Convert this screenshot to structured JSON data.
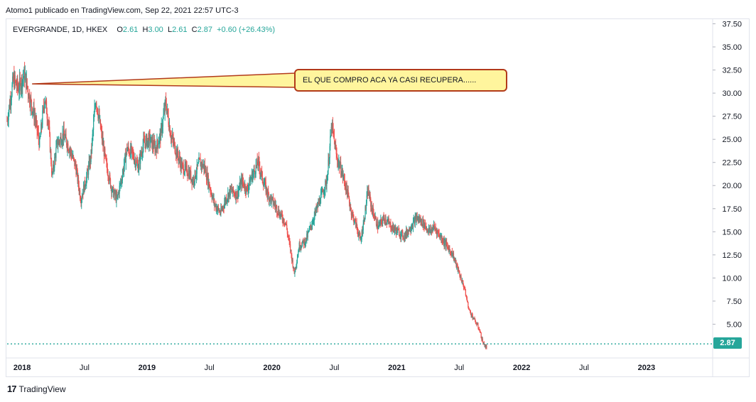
{
  "header": {
    "publisher_line": "Atomo1 publicado en TradingView.com, Sep 22, 2021 22:57 UTC-3"
  },
  "legend": {
    "symbol": "EVERGRANDE, 1D, HKEX",
    "o_label": "O",
    "o_value": "2.61",
    "h_label": "H",
    "h_value": "3.00",
    "l_label": "L",
    "l_value": "2.61",
    "c_label": "C",
    "c_value": "2.87",
    "change": "+0.60 (+26.43%)"
  },
  "annotation": {
    "text": "EL QUE COMPRO ACA YA CASI RECUPERA......"
  },
  "last_price_label": "2.87",
  "footer": {
    "brand": "TradingView",
    "logo_glyph": "17"
  },
  "colors": {
    "up": "#26a69a",
    "down": "#ef5350",
    "grid": "#e0e3eb",
    "callout_fill": "#fff59d",
    "callout_border": "#b23a1a"
  },
  "chart_data": {
    "type": "candlestick",
    "title": "EVERGRANDE, 1D, HKEX",
    "y_axis": {
      "range": [
        1.5,
        38
      ],
      "ticks": [
        "37.50",
        "35.00",
        "32.50",
        "30.00",
        "27.50",
        "25.00",
        "22.50",
        "20.00",
        "17.50",
        "15.00",
        "12.50",
        "10.00",
        "7.50",
        "5.00"
      ],
      "tick_values": [
        37.5,
        35,
        32.5,
        30,
        27.5,
        25,
        22.5,
        20,
        17.5,
        15,
        12.5,
        10,
        7.5,
        5
      ]
    },
    "x_axis": {
      "range": [
        2017.88,
        2023.53
      ],
      "ticks": [
        {
          "label": "2018",
          "value": 2018.0,
          "bold": true
        },
        {
          "label": "Jul",
          "value": 2018.5,
          "bold": false
        },
        {
          "label": "2019",
          "value": 2019.0,
          "bold": true
        },
        {
          "label": "Jul",
          "value": 2019.5,
          "bold": false
        },
        {
          "label": "2020",
          "value": 2020.0,
          "bold": true
        },
        {
          "label": "Jul",
          "value": 2020.5,
          "bold": false
        },
        {
          "label": "2021",
          "value": 2021.0,
          "bold": true
        },
        {
          "label": "Jul",
          "value": 2021.5,
          "bold": false
        },
        {
          "label": "2022",
          "value": 2022.0,
          "bold": true
        },
        {
          "label": "Jul",
          "value": 2022.5,
          "bold": false
        },
        {
          "label": "2023",
          "value": 2023.0,
          "bold": true
        }
      ]
    },
    "last_price": 2.87,
    "annotation_anchor": {
      "date": 2018.08,
      "price": 31.0
    },
    "price_path": [
      [
        2017.88,
        27.0
      ],
      [
        2017.93,
        31.5
      ],
      [
        2017.97,
        30.5
      ],
      [
        2018.02,
        32.0
      ],
      [
        2018.06,
        29.5
      ],
      [
        2018.1,
        27.5
      ],
      [
        2018.14,
        24.5
      ],
      [
        2018.18,
        29.5
      ],
      [
        2018.21,
        27.0
      ],
      [
        2018.24,
        21.0
      ],
      [
        2018.28,
        24.5
      ],
      [
        2018.33,
        25.5
      ],
      [
        2018.38,
        24.0
      ],
      [
        2018.43,
        22.0
      ],
      [
        2018.47,
        18.5
      ],
      [
        2018.51,
        20.5
      ],
      [
        2018.55,
        23.0
      ],
      [
        2018.59,
        29.5
      ],
      [
        2018.63,
        26.0
      ],
      [
        2018.67,
        22.5
      ],
      [
        2018.72,
        19.5
      ],
      [
        2018.76,
        18.5
      ],
      [
        2018.8,
        21.0
      ],
      [
        2018.84,
        24.0
      ],
      [
        2018.88,
        23.5
      ],
      [
        2018.93,
        22.0
      ],
      [
        2018.97,
        24.5
      ],
      [
        2019.02,
        25.0
      ],
      [
        2019.07,
        24.0
      ],
      [
        2019.11,
        25.5
      ],
      [
        2019.15,
        29.0
      ],
      [
        2019.19,
        25.5
      ],
      [
        2019.24,
        23.5
      ],
      [
        2019.28,
        22.0
      ],
      [
        2019.33,
        21.5
      ],
      [
        2019.37,
        20.5
      ],
      [
        2019.42,
        22.5
      ],
      [
        2019.46,
        22.0
      ],
      [
        2019.5,
        20.0
      ],
      [
        2019.54,
        18.0
      ],
      [
        2019.59,
        17.0
      ],
      [
        2019.63,
        18.5
      ],
      [
        2019.67,
        19.5
      ],
      [
        2019.72,
        19.0
      ],
      [
        2019.76,
        20.5
      ],
      [
        2019.8,
        19.5
      ],
      [
        2019.84,
        21.0
      ],
      [
        2019.89,
        22.5
      ],
      [
        2019.93,
        20.5
      ],
      [
        2019.97,
        19.0
      ],
      [
        2020.02,
        18.0
      ],
      [
        2020.06,
        17.0
      ],
      [
        2020.11,
        16.0
      ],
      [
        2020.15,
        13.0
      ],
      [
        2020.18,
        10.5
      ],
      [
        2020.22,
        13.5
      ],
      [
        2020.27,
        14.0
      ],
      [
        2020.31,
        15.5
      ],
      [
        2020.36,
        17.5
      ],
      [
        2020.4,
        19.0
      ],
      [
        2020.44,
        20.5
      ],
      [
        2020.48,
        26.5
      ],
      [
        2020.52,
        23.0
      ],
      [
        2020.56,
        21.5
      ],
      [
        2020.6,
        19.5
      ],
      [
        2020.64,
        17.0
      ],
      [
        2020.68,
        15.5
      ],
      [
        2020.71,
        14.0
      ],
      [
        2020.74,
        16.5
      ],
      [
        2020.77,
        19.5
      ],
      [
        2020.8,
        17.5
      ],
      [
        2020.85,
        15.5
      ],
      [
        2020.9,
        16.5
      ],
      [
        2020.96,
        15.5
      ],
      [
        2021.01,
        15.0
      ],
      [
        2021.06,
        14.5
      ],
      [
        2021.11,
        15.5
      ],
      [
        2021.16,
        16.5
      ],
      [
        2021.21,
        16.0
      ],
      [
        2021.26,
        15.0
      ],
      [
        2021.3,
        15.5
      ],
      [
        2021.35,
        14.5
      ],
      [
        2021.4,
        13.5
      ],
      [
        2021.45,
        12.5
      ],
      [
        2021.5,
        10.5
      ],
      [
        2021.54,
        9.0
      ],
      [
        2021.58,
        6.5
      ],
      [
        2021.62,
        5.5
      ],
      [
        2021.66,
        4.5
      ],
      [
        2021.69,
        3.0
      ],
      [
        2021.72,
        2.4
      ]
    ]
  }
}
